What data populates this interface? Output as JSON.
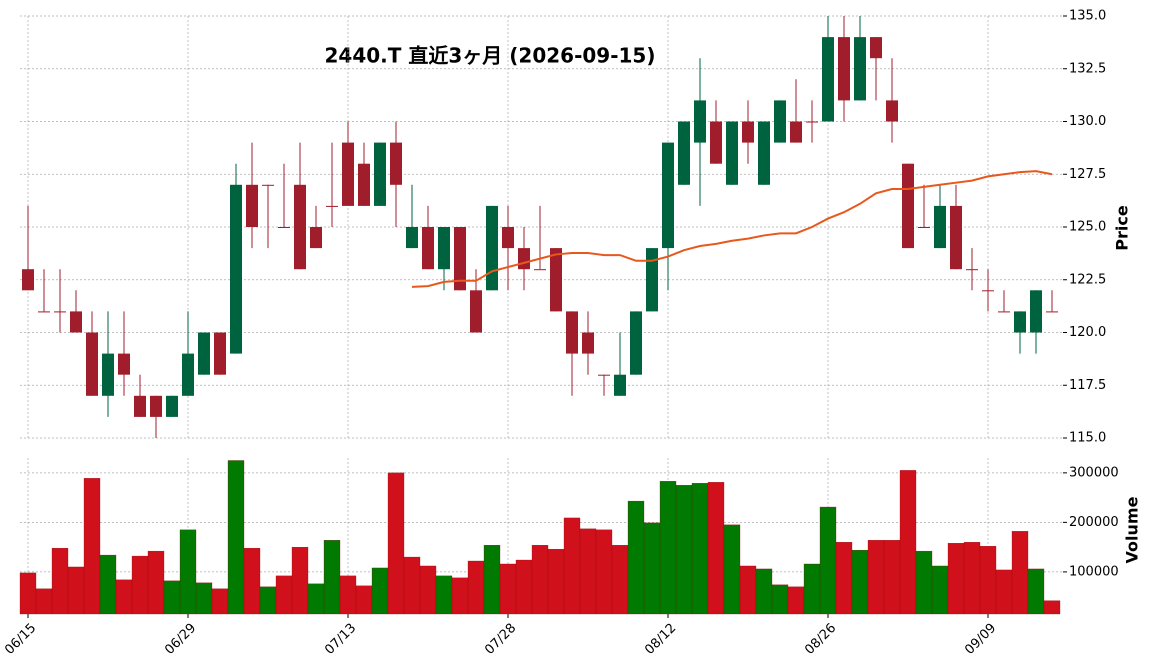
{
  "chart_data": {
    "type": "candlestick",
    "title": "2440.T  直近3ヶ月  (2026-09-15)",
    "categories": [
      "06/15",
      null,
      null,
      null,
      null,
      null,
      null,
      null,
      null,
      null,
      "06/29",
      null,
      null,
      null,
      null,
      null,
      null,
      null,
      null,
      null,
      "07/13",
      null,
      null,
      null,
      null,
      null,
      null,
      null,
      null,
      null,
      "07/28",
      null,
      null,
      null,
      null,
      null,
      null,
      null,
      null,
      null,
      "08/12",
      null,
      null,
      null,
      null,
      null,
      null,
      null,
      null,
      null,
      "08/26",
      null,
      null,
      null,
      null,
      null,
      null,
      null,
      null,
      null,
      "09/09",
      null,
      null,
      null,
      null
    ],
    "open": [
      123,
      121,
      121,
      121,
      120,
      117,
      119,
      117,
      117,
      116,
      117,
      118,
      120,
      119,
      127,
      127,
      125,
      127,
      125,
      126,
      129,
      128,
      126,
      129,
      124,
      125,
      123,
      125,
      122,
      122,
      125,
      124,
      123,
      124,
      121,
      120,
      118,
      117,
      118,
      121,
      124,
      127,
      129,
      130,
      127,
      130,
      127,
      129,
      130,
      130,
      130,
      134,
      131,
      134,
      131,
      128,
      125,
      124,
      126,
      123,
      122,
      121,
      120,
      120,
      121
    ],
    "high": [
      126,
      123,
      123,
      122,
      121,
      121,
      121,
      118,
      117,
      117,
      121,
      120,
      120,
      128,
      129,
      127,
      128,
      129,
      126,
      129,
      130,
      129,
      129,
      130,
      127,
      126,
      125,
      125,
      123,
      126,
      126,
      125,
      126,
      124,
      121,
      121,
      118,
      120,
      121,
      124,
      129,
      130,
      133,
      131,
      130,
      131,
      130,
      131,
      132,
      131,
      135,
      135,
      135,
      134,
      133,
      128,
      127,
      127,
      127,
      124,
      123,
      122,
      121,
      122,
      122
    ],
    "low": [
      122,
      121,
      120,
      120,
      117,
      116,
      117,
      116,
      115,
      116,
      117,
      118,
      118,
      119,
      124,
      124,
      125,
      123,
      124,
      125,
      126,
      126,
      126,
      125,
      124,
      123,
      122,
      122,
      120,
      122,
      122,
      122,
      123,
      121,
      117,
      118,
      117,
      117,
      118,
      121,
      122,
      127,
      126,
      128,
      127,
      128,
      127,
      129,
      129,
      129,
      130,
      130,
      131,
      131,
      129,
      124,
      125,
      124,
      123,
      122,
      121,
      121,
      119,
      119,
      121
    ],
    "close": [
      122,
      121,
      121,
      120,
      117,
      119,
      118,
      116,
      116,
      117,
      119,
      120,
      118,
      127,
      125,
      127,
      125,
      123,
      124,
      126,
      126,
      126,
      129,
      127,
      125,
      123,
      125,
      122,
      120,
      126,
      124,
      123,
      123,
      121,
      119,
      119,
      118,
      118,
      121,
      124,
      129,
      130,
      131,
      128,
      130,
      129,
      130,
      131,
      129,
      130,
      134,
      131,
      134,
      133,
      130,
      124,
      125,
      126,
      123,
      123,
      122,
      121,
      121,
      122,
      121
    ],
    "up_color": "#006340",
    "down_color": "#a01e2c",
    "ma": {
      "color": "#e8581c",
      "values": [
        null,
        null,
        null,
        null,
        null,
        null,
        null,
        null,
        null,
        null,
        null,
        null,
        null,
        null,
        null,
        null,
        null,
        null,
        null,
        null,
        null,
        null,
        null,
        null,
        122.16,
        122.2,
        122.4,
        122.45,
        122.45,
        122.9,
        123.1,
        123.3,
        123.5,
        123.7,
        123.77,
        123.77,
        123.67,
        123.67,
        123.4,
        123.4,
        123.6,
        123.9,
        124.1,
        124.2,
        124.35,
        124.45,
        124.6,
        124.7,
        124.7,
        125,
        125.4,
        125.7,
        126.1,
        126.6,
        126.8,
        126.8,
        126.9,
        127,
        127.1,
        127.2,
        127.4,
        127.5,
        127.6,
        127.65,
        127.5
      ]
    },
    "ylabel": "Price",
    "ylim": [
      115,
      135
    ],
    "yticks": [
      {
        "value": 115,
        "label": "115.0"
      },
      {
        "value": 117.5,
        "label": "117.5"
      },
      {
        "value": 120,
        "label": "120.0"
      },
      {
        "value": 122.5,
        "label": "122.5"
      },
      {
        "value": 125,
        "label": "125.0"
      },
      {
        "value": 127.5,
        "label": "127.5"
      },
      {
        "value": 130,
        "label": "130.0"
      },
      {
        "value": 132.5,
        "label": "132.5"
      },
      {
        "value": 135,
        "label": "135.0"
      }
    ],
    "volume": {
      "ylabel": "Volume",
      "values": [
        98000,
        66000,
        148000,
        110000,
        289000,
        134000,
        84000,
        132000,
        142000,
        82000,
        185000,
        78000,
        66000,
        325000,
        148000,
        70000,
        92000,
        150000,
        76000,
        164000,
        92000,
        72000,
        108000,
        300000,
        130000,
        112000,
        92000,
        88000,
        122000,
        154000,
        116000,
        124000,
        154000,
        146000,
        209000,
        187000,
        185000,
        154000,
        243000,
        199000,
        283000,
        275000,
        279000,
        281000,
        195000,
        112000,
        106000,
        74000,
        70000,
        116000,
        231000,
        160000,
        144000,
        164000,
        164000,
        305000,
        142000,
        112000,
        158000,
        160000,
        152000,
        104000,
        182000,
        106000,
        42000
      ],
      "colors": [
        "#d0111b",
        "#d0111b",
        "#d0111b",
        "#d0111b",
        "#d0111b",
        "#007a00",
        "#d0111b",
        "#d0111b",
        "#d0111b",
        "#007a00",
        "#007a00",
        "#007a00",
        "#d0111b",
        "#007a00",
        "#d0111b",
        "#007a00",
        "#d0111b",
        "#d0111b",
        "#007a00",
        "#007a00",
        "#d0111b",
        "#d0111b",
        "#007a00",
        "#d0111b",
        "#d0111b",
        "#d0111b",
        "#007a00",
        "#d0111b",
        "#d0111b",
        "#007a00",
        "#d0111b",
        "#d0111b",
        "#d0111b",
        "#d0111b",
        "#d0111b",
        "#d0111b",
        "#d0111b",
        "#d0111b",
        "#007a00",
        "#007a00",
        "#007a00",
        "#007a00",
        "#007a00",
        "#d0111b",
        "#007a00",
        "#d0111b",
        "#007a00",
        "#007a00",
        "#d0111b",
        "#007a00",
        "#007a00",
        "#d0111b",
        "#007a00",
        "#d0111b",
        "#d0111b",
        "#d0111b",
        "#007a00",
        "#007a00",
        "#d0111b",
        "#d0111b",
        "#d0111b",
        "#d0111b",
        "#d0111b",
        "#007a00",
        "#d0111b"
      ],
      "ylim": [
        15000,
        330000
      ],
      "yticks": [
        100000,
        200000,
        300000
      ]
    },
    "grid": true
  }
}
